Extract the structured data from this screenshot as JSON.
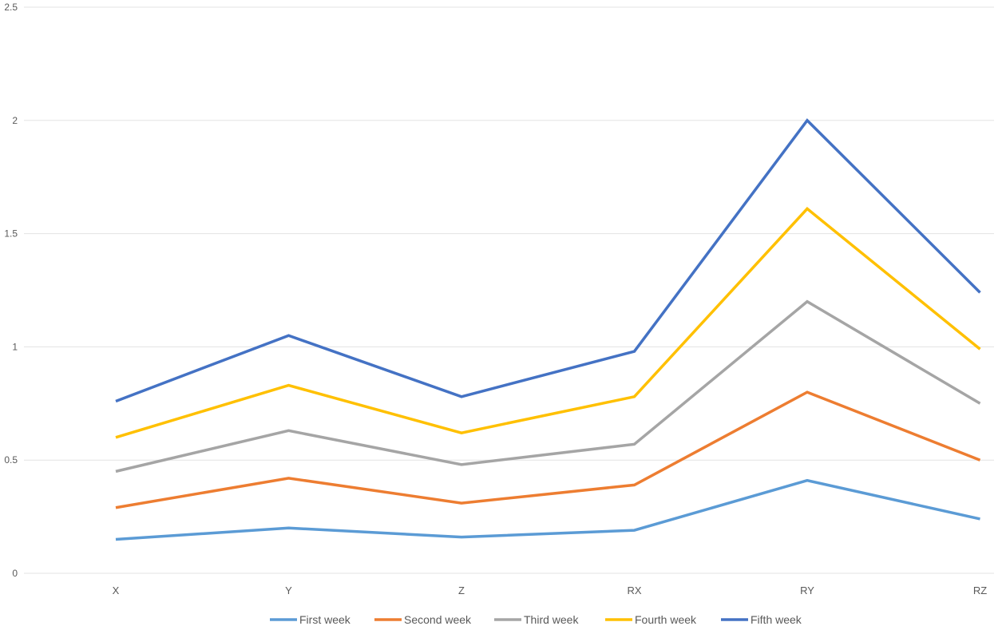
{
  "chart_data": {
    "type": "line",
    "title": "",
    "xlabel": "",
    "ylabel": "",
    "categories": [
      "X",
      "Y",
      "Z",
      "RX",
      "RY",
      "RZ"
    ],
    "ylim": [
      0,
      2.5
    ],
    "yticks": [
      "0",
      "0.5",
      "1",
      "1.5",
      "2",
      "2.5"
    ],
    "grid": true,
    "legend_position": "bottom",
    "series": [
      {
        "name": "First week",
        "color": "#5B9BD5",
        "values": [
          0.15,
          0.2,
          0.16,
          0.19,
          0.41,
          0.24
        ]
      },
      {
        "name": "Second week",
        "color": "#ED7D31",
        "values": [
          0.29,
          0.42,
          0.31,
          0.39,
          0.8,
          0.5
        ]
      },
      {
        "name": "Third week",
        "color": "#A5A5A5",
        "values": [
          0.45,
          0.63,
          0.48,
          0.57,
          1.2,
          0.75
        ]
      },
      {
        "name": "Fourth week",
        "color": "#FFC000",
        "values": [
          0.6,
          0.83,
          0.62,
          0.78,
          1.61,
          0.99
        ]
      },
      {
        "name": "Fifth week",
        "color": "#4472C4",
        "values": [
          0.76,
          1.05,
          0.78,
          0.98,
          2.0,
          1.24
        ]
      }
    ]
  }
}
